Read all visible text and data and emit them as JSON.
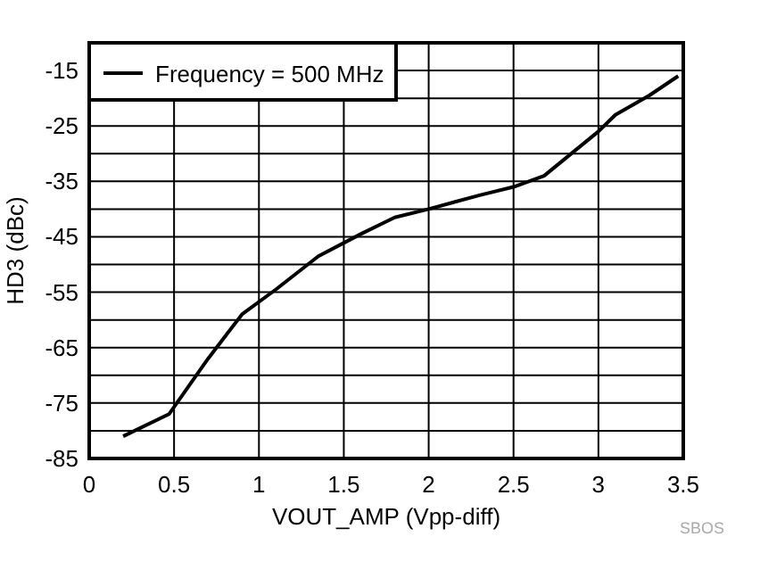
{
  "chart_data": {
    "type": "line",
    "xlabel": "VOUT_AMP (Vpp-diff)",
    "ylabel": "HD3 (dBc)",
    "x": [
      0.2,
      0.47,
      0.7,
      0.9,
      1.1,
      1.35,
      1.6,
      1.8,
      2.0,
      2.3,
      2.5,
      2.68,
      3.0,
      3.1,
      3.3,
      3.47
    ],
    "series": [
      {
        "name": "Frequency = 500 MHz",
        "color": "#000000",
        "values": [
          -81,
          -77,
          -67,
          -59,
          -54.5,
          -48.5,
          -44.5,
          -41.5,
          -40,
          -37.5,
          -36,
          -34,
          -26,
          -23,
          -19.5,
          -16
        ]
      }
    ],
    "xlim": [
      0,
      3.5
    ],
    "xticks": [
      0,
      0.5,
      1,
      1.5,
      2,
      2.5,
      3,
      3.5
    ],
    "ylim": [
      -85,
      -10
    ],
    "yticks": [
      -85,
      {
        "value": -80,
        "label": null
      },
      -75,
      {
        "value": -70,
        "label": null
      },
      -65,
      {
        "value": -60,
        "label": null
      },
      -55,
      {
        "value": -50,
        "label": null
      },
      -45,
      {
        "value": -40,
        "label": null
      },
      -35,
      {
        "value": -30,
        "label": null
      },
      -25,
      {
        "value": -20,
        "label": null
      },
      -15,
      {
        "value": -10,
        "label": null
      }
    ],
    "grid": true,
    "legend": "top left",
    "marker": "none",
    "line_style": "solid",
    "annotations": [
      "SBOS"
    ]
  }
}
